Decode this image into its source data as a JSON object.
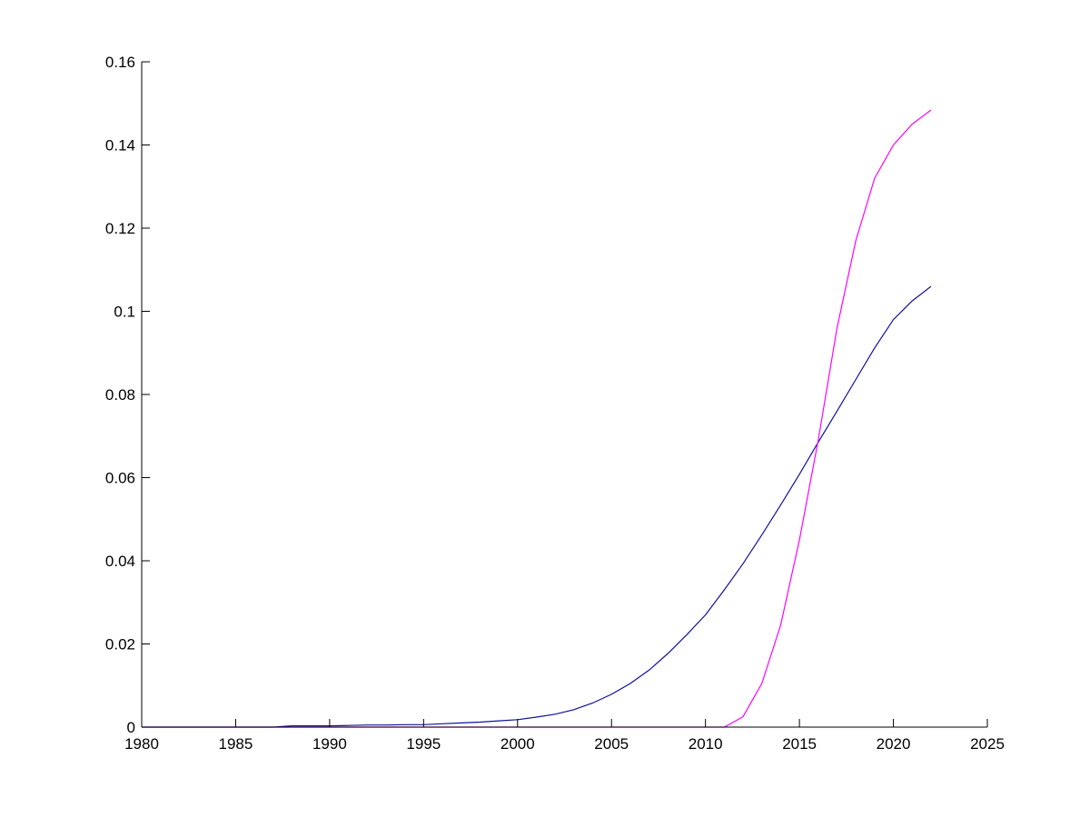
{
  "chart_data": {
    "type": "line",
    "title": "",
    "xlabel": "",
    "ylabel": "",
    "xlim": [
      1980,
      2025
    ],
    "ylim": [
      0,
      0.16
    ],
    "grid": false,
    "xticks": [
      1980,
      1985,
      1990,
      1995,
      2000,
      2005,
      2010,
      2015,
      2020,
      2025
    ],
    "xtick_labels": [
      "1980",
      "1985",
      "1990",
      "1995",
      "2000",
      "2005",
      "2010",
      "2015",
      "2020",
      "2025"
    ],
    "yticks": [
      0,
      0.02,
      0.04,
      0.06,
      0.08,
      0.1,
      0.12,
      0.14,
      0.16
    ],
    "ytick_labels": [
      "0",
      "0.02",
      "0.04",
      "0.06",
      "0.08",
      "0.1",
      "0.12",
      "0.14",
      "0.16"
    ],
    "x": [
      1980,
      1981,
      1982,
      1983,
      1984,
      1985,
      1986,
      1987,
      1988,
      1989,
      1990,
      1991,
      1992,
      1993,
      1994,
      1995,
      1996,
      1997,
      1998,
      1999,
      2000,
      2001,
      2002,
      2003,
      2004,
      2005,
      2006,
      2007,
      2008,
      2009,
      2010,
      2011,
      2012,
      2013,
      2014,
      2015,
      2016,
      2017,
      2018,
      2019,
      2020,
      2021,
      2022
    ],
    "series": [
      {
        "color": "#1010a0",
        "values": [
          0,
          0,
          0,
          0,
          0,
          0,
          0,
          0,
          0.0003,
          0.0003,
          0.0003,
          0.0004,
          0.0005,
          0.0005,
          0.0006,
          0.0006,
          0.0008,
          0.001,
          0.0012,
          0.0015,
          0.0018,
          0.0024,
          0.0031,
          0.0042,
          0.0058,
          0.0079,
          0.0105,
          0.0137,
          0.0177,
          0.0222,
          0.027,
          0.033,
          0.0393,
          0.0462,
          0.0534,
          0.0608,
          0.0685,
          0.076,
          0.0836,
          0.0912,
          0.098,
          0.1025,
          0.106
        ]
      },
      {
        "color": "#ff00ff",
        "values": [
          0,
          0,
          0,
          0,
          0,
          0,
          0,
          0,
          0,
          0,
          0,
          0,
          0,
          0,
          0,
          0,
          0,
          0,
          0,
          0,
          0,
          0,
          0,
          0,
          0,
          0,
          0,
          0,
          0,
          0,
          0,
          0,
          0.0025,
          0.0105,
          0.0245,
          0.045,
          0.069,
          0.096,
          0.117,
          0.132,
          0.14,
          0.145,
          0.1484
        ]
      }
    ]
  }
}
